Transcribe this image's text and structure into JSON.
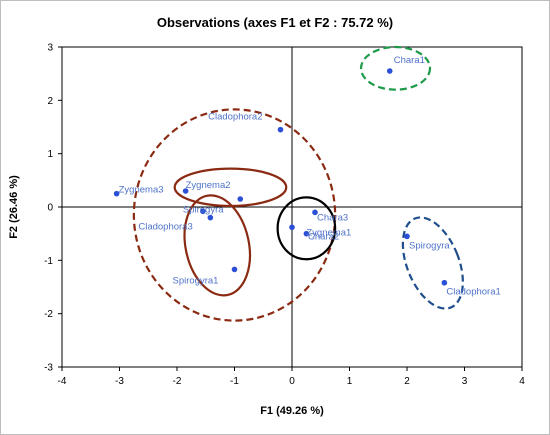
{
  "chart_data": {
    "type": "scatter",
    "title": "Observations (axes F1 et F2 : 75.72 %)",
    "xlabel": "F1 (49.26 %)",
    "ylabel": "F2 (26.46 %)",
    "xlim": [
      -4,
      4
    ],
    "ylim": [
      -3,
      3
    ],
    "xticks": [
      "-4",
      "-3",
      "-2",
      "-1",
      "0",
      "1",
      "2",
      "3",
      "4"
    ],
    "yticks": [
      "3",
      "2",
      "1",
      "0",
      "-1",
      "-2",
      "-3"
    ],
    "grid": false,
    "legend": "none",
    "points": [
      {
        "label": "Chara1",
        "x": 1.7,
        "y": 2.55
      },
      {
        "label": "Cladophora2",
        "x": -0.2,
        "y": 1.45
      },
      {
        "label": "Zygnema3",
        "x": -3.05,
        "y": 0.25
      },
      {
        "label": "Zygnema2",
        "x": -1.85,
        "y": 0.3
      },
      {
        "label": "",
        "x": -0.9,
        "y": 0.15
      },
      {
        "label": "Spirogyra",
        "x": -1.55,
        "y": -0.08
      },
      {
        "label": "Cladophora3",
        "x": -1.42,
        "y": -0.2
      },
      {
        "label": "Spirogyra1",
        "x": -1.0,
        "y": -1.17
      },
      {
        "label": "Chara3",
        "x": 0.4,
        "y": -0.1
      },
      {
        "label": "Zygnema1",
        "x": 0.25,
        "y": -0.5
      },
      {
        "label": "Chara2",
        "x": 0.0,
        "y": -0.38
      },
      {
        "label": "Spirogyra",
        "x": 2.0,
        "y": -0.55
      },
      {
        "label": "Cladophora1",
        "x": 2.65,
        "y": -1.42
      }
    ],
    "ellipses": [
      {
        "cx": 1.8,
        "cy": 2.6,
        "rx": 0.6,
        "ry": 0.4,
        "angle": 0,
        "color": "#1e9a4a",
        "style": "dashed"
      },
      {
        "cx": -1.0,
        "cy": -0.15,
        "rx": 1.75,
        "ry": 1.98,
        "angle": 0,
        "color": "#8b2a12",
        "style": "dashed"
      },
      {
        "cx": -1.07,
        "cy": 0.37,
        "rx": 0.97,
        "ry": 0.35,
        "angle": 0,
        "color": "#8b2a12",
        "style": "solid"
      },
      {
        "cx": -1.3,
        "cy": -0.72,
        "rx": 0.55,
        "ry": 0.95,
        "angle": -12,
        "color": "#8b2a12",
        "style": "solid"
      },
      {
        "cx": 0.25,
        "cy": -0.4,
        "rx": 0.5,
        "ry": 0.58,
        "angle": 0,
        "color": "#000000",
        "style": "solid"
      },
      {
        "cx": 2.45,
        "cy": -1.05,
        "rx": 0.45,
        "ry": 0.9,
        "angle": -22,
        "color": "#1f4e8c",
        "style": "dashed"
      }
    ],
    "colors": {
      "points": "#2b4fd6",
      "labels": "#4f73c9",
      "axes": "#000000"
    }
  }
}
